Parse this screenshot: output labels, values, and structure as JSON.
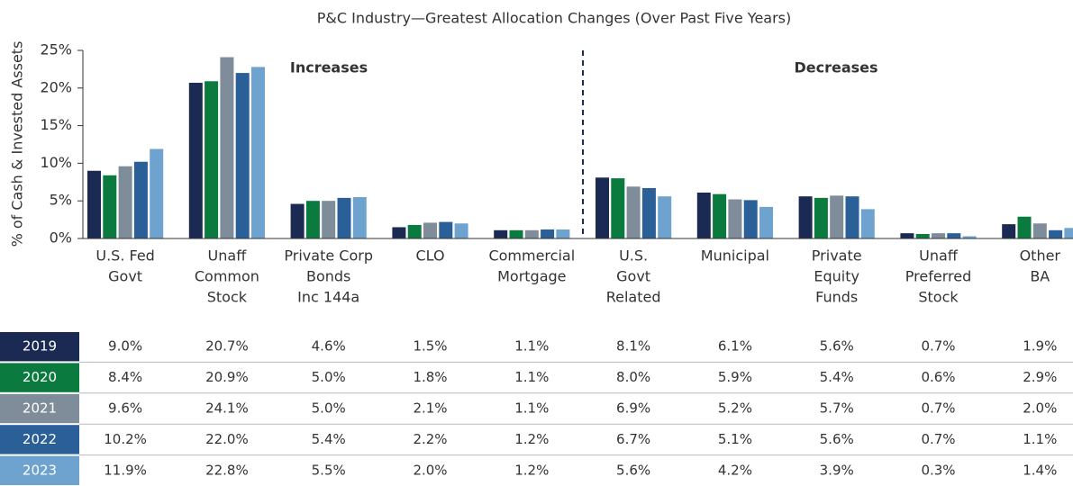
{
  "chart_data": {
    "type": "bar",
    "title": "P&C Industry—Greatest Allocation Changes (Over Past Five Years)",
    "y_label": "% of Cash & Invested Assets",
    "annotations": [
      "Increases",
      "Decreases"
    ],
    "categories": [
      [
        "U.S. Fed",
        "Govt"
      ],
      [
        "Unaff",
        "Common",
        "Stock"
      ],
      [
        "Private Corp",
        "Bonds",
        "Inc 144a"
      ],
      [
        "CLO"
      ],
      [
        "Commercial",
        "Mortgage"
      ],
      [
        "U.S.",
        "Govt",
        "Related"
      ],
      [
        "Municipal"
      ],
      [
        "Private",
        "Equity",
        "Funds"
      ],
      [
        "Unaff",
        "Preferred",
        "Stock"
      ],
      [
        "Other",
        "BA"
      ]
    ],
    "series": [
      {
        "name": "2019",
        "color": "#1b2a52",
        "values": [
          9.0,
          20.7,
          4.6,
          1.5,
          1.1,
          8.1,
          6.1,
          5.6,
          0.7,
          1.9
        ],
        "value_labels": [
          "9.0%",
          "20.7%",
          "4.6%",
          "1.5%",
          "1.1%",
          "8.1%",
          "6.1%",
          "5.6%",
          "0.7%",
          "1.9%"
        ]
      },
      {
        "name": "2020",
        "color": "#0a7a3e",
        "values": [
          8.4,
          20.9,
          5.0,
          1.8,
          1.1,
          8.0,
          5.9,
          5.4,
          0.6,
          2.9
        ],
        "value_labels": [
          "8.4%",
          "20.9%",
          "5.0%",
          "1.8%",
          "1.1%",
          "8.0%",
          "5.9%",
          "5.4%",
          "0.6%",
          "2.9%"
        ]
      },
      {
        "name": "2021",
        "color": "#7f8c99",
        "values": [
          9.6,
          24.1,
          5.0,
          2.1,
          1.1,
          6.9,
          5.2,
          5.7,
          0.7,
          2.0
        ],
        "value_labels": [
          "9.6%",
          "24.1%",
          "5.0%",
          "2.1%",
          "1.1%",
          "6.9%",
          "5.2%",
          "5.7%",
          "0.7%",
          "2.0%"
        ]
      },
      {
        "name": "2022",
        "color": "#2a5f97",
        "values": [
          10.2,
          22.0,
          5.4,
          2.2,
          1.2,
          6.7,
          5.1,
          5.6,
          0.7,
          1.1
        ],
        "value_labels": [
          "10.2%",
          "22.0%",
          "5.4%",
          "2.2%",
          "1.2%",
          "6.7%",
          "5.1%",
          "5.6%",
          "0.7%",
          "1.1%"
        ]
      },
      {
        "name": "2023",
        "color": "#6fa3cf",
        "values": [
          11.9,
          22.8,
          5.5,
          2.0,
          1.2,
          5.6,
          4.2,
          3.9,
          0.3,
          1.4
        ],
        "value_labels": [
          "11.9%",
          "22.8%",
          "5.5%",
          "2.0%",
          "1.2%",
          "5.6%",
          "4.2%",
          "3.9%",
          "0.3%",
          "1.4%"
        ]
      }
    ],
    "ylim": [
      0,
      25
    ],
    "yticks": [
      {
        "value": 0,
        "label": "0%"
      },
      {
        "value": 5,
        "label": "5%"
      },
      {
        "value": 10,
        "label": "10%"
      },
      {
        "value": 15,
        "label": "15%"
      },
      {
        "value": 20,
        "label": "20%"
      },
      {
        "value": 25,
        "label": "25%"
      }
    ]
  }
}
